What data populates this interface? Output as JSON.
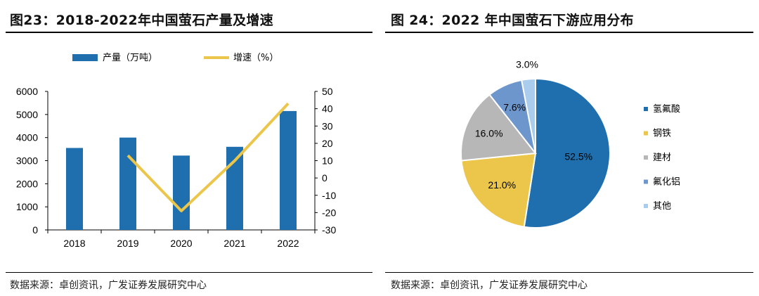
{
  "left_panel": {
    "title": "图23：2018-2022年中国萤石产量及增速",
    "source": "数据来源：卓创资讯，广发证券发展研究中心"
  },
  "right_panel": {
    "title": "图 24：2022 年中国萤石下游应用分布",
    "source": "数据来源：卓创资讯，广发证券发展研究中心"
  },
  "colors": {
    "bar": "#1f6fae",
    "line": "#ecc64a",
    "accent": "#1f6fae"
  },
  "chart_data": [
    {
      "type": "bar",
      "title": "2018-2022年中国萤石产量及增速",
      "categories": [
        "2018",
        "2019",
        "2020",
        "2021",
        "2022"
      ],
      "series": [
        {
          "name": "产量（万吨）",
          "type": "bar",
          "axis": "left",
          "values": [
            3550,
            4000,
            3220,
            3600,
            5150
          ]
        },
        {
          "name": "增速（%）",
          "type": "line",
          "axis": "right",
          "values": [
            null,
            13,
            -19,
            10,
            43
          ]
        }
      ],
      "y_left": {
        "range": [
          0,
          6000
        ],
        "ticks": [
          "0",
          "1000",
          "2000",
          "3000",
          "4000",
          "5000",
          "6000"
        ]
      },
      "y_right": {
        "range": [
          -30,
          50
        ],
        "ticks": [
          "-30",
          "-20",
          "-10",
          "0",
          "10",
          "20",
          "30",
          "40",
          "50"
        ]
      },
      "legend": [
        "产量（万吨）",
        "增速（%）"
      ]
    },
    {
      "type": "pie",
      "title": "2022 年中国萤石下游应用分布",
      "slices": [
        {
          "name": "氢氟酸",
          "value": 52.5,
          "label": "52.5%",
          "color": "#1f6fae"
        },
        {
          "name": "钢铁",
          "value": 21.0,
          "label": "21.0%",
          "color": "#ecc64a"
        },
        {
          "name": "建材",
          "value": 16.0,
          "label": "16.0%",
          "color": "#b7b7b7"
        },
        {
          "name": "氟化铝",
          "value": 7.6,
          "label": "7.6%",
          "color": "#6d97cc"
        },
        {
          "name": "其他",
          "value": 3.0,
          "label": "3.0%",
          "color": "#aacdee"
        }
      ]
    }
  ]
}
